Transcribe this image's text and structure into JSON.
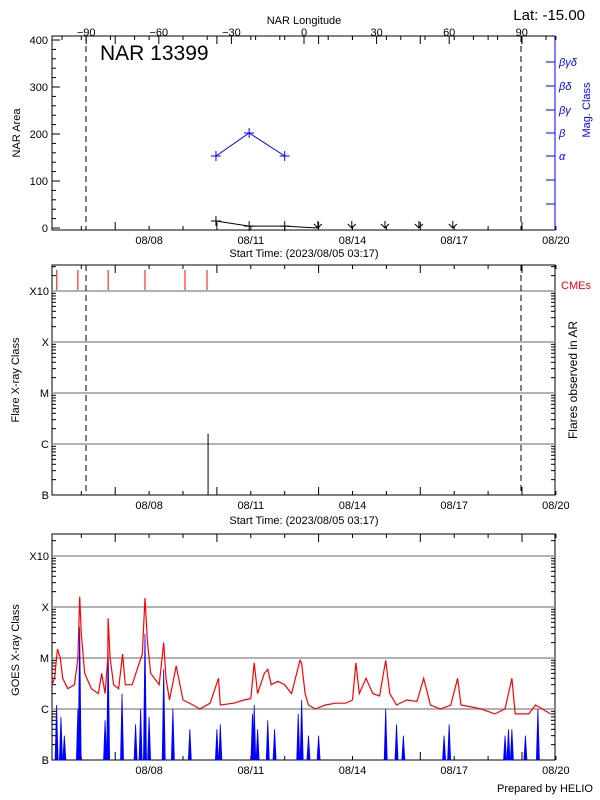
{
  "chart_data": [
    {
      "type": "line",
      "title": "NAR 13399",
      "lat_label": "Lat: -15.00",
      "top_axis_label": "NAR Longitude",
      "top_axis_ticks": [
        -90,
        -60,
        -30,
        0,
        30,
        60,
        90
      ],
      "xlabel": "Start Time: (2023/08/05 03:17)",
      "x_tick_labels": [
        "08/08",
        "08/11",
        "08/14",
        "08/17",
        "08/20"
      ],
      "x_tick_dates": [
        "2023-08-08 00:00",
        "2023-08-11 00:00",
        "2023-08-14 00:00",
        "2023-08-17 00:00",
        "2023-08-20 00:00"
      ],
      "xlim": [
        "2023-08-05 03:17",
        "2023-08-20 00:00"
      ],
      "ylabel": "NAR Area",
      "ylim": [
        0,
        400
      ],
      "y_ticks": [
        0,
        100,
        200,
        300,
        400
      ],
      "y2label": "Mag. Class",
      "y2_tick_labels": [
        "α",
        "β",
        "βγ",
        "βδ",
        "βγδ"
      ],
      "limb_longitudes": [
        -90,
        90
      ],
      "series": [
        {
          "name": "NAR Area",
          "color": "#000000",
          "points": [
            [
              "2023-08-09 23:20",
              15
            ],
            [
              "2023-08-10 22:50",
              4
            ],
            [
              "2023-08-12 00:00",
              4
            ]
          ],
          "limb_markers": [
            "2023-08-12 23:30",
            "2023-08-13 23:30",
            "2023-08-14 23:00",
            "2023-08-15 23:00",
            "2023-08-16 23:00"
          ]
        },
        {
          "name": "Mag. Class",
          "color": "#0000ff",
          "points": [
            [
              "2023-08-09 23:20",
              "α"
            ],
            [
              "2023-08-10 22:50",
              "β"
            ],
            [
              "2023-08-12 00:00",
              "α"
            ]
          ]
        }
      ]
    },
    {
      "type": "bar",
      "xlabel": "Start Time: (2023/08/05 03:17)",
      "x_tick_labels": [
        "08/08",
        "08/11",
        "08/14",
        "08/17",
        "08/20"
      ],
      "ylabel": "Flare X-ray Class",
      "y2label": "Flares observed in AR",
      "y_scale": "log",
      "y_tick_labels": [
        "B",
        "C",
        "M",
        "X",
        "X10"
      ],
      "grid": true,
      "cme_label": "CMEs",
      "cme_color": "#ff0000",
      "cmes": [
        "2023-08-05 06:40",
        "2023-08-05 21:35",
        "2023-08-06 19:00",
        "2023-08-07 21:05",
        "2023-08-09 01:25",
        "2023-08-09 17:00"
      ],
      "flares": [
        [
          "2023-08-09 17:45",
          "C1.6"
        ]
      ]
    },
    {
      "type": "line",
      "ylabel": "GOES X-ray Class",
      "y_scale": "log",
      "y_tick_labels": [
        "B",
        "C",
        "M",
        "X",
        "X10"
      ],
      "x_tick_labels": [
        "08/08",
        "08/11",
        "08/14",
        "08/17",
        "08/20"
      ],
      "grid": true,
      "series": [
        {
          "color": "#ff0000",
          "points": [
            [
              "2023-08-05 03:20",
              3e-06
            ],
            [
              "2023-08-05 05:00",
              4e-06
            ],
            [
              "2023-08-05 07:10",
              1.5e-05
            ],
            [
              "2023-08-05 09:10",
              1e-05
            ],
            [
              "2023-08-05 10:50",
              4e-06
            ],
            [
              "2023-08-05 14:25",
              2.5e-06
            ],
            [
              "2023-08-05 19:10",
              3e-06
            ],
            [
              "2023-08-05 21:35",
              1e-05
            ],
            [
              "2023-08-05 22:50",
              0.00016
            ],
            [
              "2023-08-06 00:00",
              3e-05
            ],
            [
              "2023-08-06 02:25",
              5e-06
            ],
            [
              "2023-08-06 07:10",
              2.5e-06
            ],
            [
              "2023-08-06 12:00",
              2e-06
            ],
            [
              "2023-08-06 14:25",
              5e-06
            ],
            [
              "2023-08-06 16:50",
              2e-06
            ],
            [
              "2023-08-06 18:45",
              1e-05
            ],
            [
              "2023-08-06 19:00",
              6e-05
            ],
            [
              "2023-08-06 20:25",
              1e-05
            ],
            [
              "2023-08-06 22:50",
              3e-06
            ],
            [
              "2023-08-07 02:25",
              2.5e-06
            ],
            [
              "2023-08-07 05:15",
              1.2e-05
            ],
            [
              "2023-08-07 07:10",
              3e-06
            ],
            [
              "2023-08-07 12:00",
              3e-06
            ],
            [
              "2023-08-07 15:35",
              6e-06
            ],
            [
              "2023-08-07 19:10",
              1.2e-05
            ],
            [
              "2023-08-07 21:05",
              0.00015
            ],
            [
              "2023-08-07 22:50",
              2e-05
            ],
            [
              "2023-08-08 01:10",
              5e-06
            ],
            [
              "2023-08-08 07:10",
              3e-06
            ],
            [
              "2023-08-08 10:20",
              2e-05
            ],
            [
              "2023-08-08 12:00",
              4e-06
            ],
            [
              "2023-08-08 14:25",
              1.5e-06
            ],
            [
              "2023-08-08 19:10",
              7e-06
            ],
            [
              "2023-08-09 00:00",
              1.5e-06
            ],
            [
              "2023-08-09 07:10",
              1.2e-06
            ],
            [
              "2023-08-09 12:00",
              1e-06
            ],
            [
              "2023-08-09 19:10",
              1.3e-06
            ],
            [
              "2023-08-10 01:10",
              4e-06
            ],
            [
              "2023-08-10 02:25",
              1.2e-06
            ],
            [
              "2023-08-10 12:00",
              1.3e-06
            ],
            [
              "2023-08-10 19:10",
              1.5e-06
            ],
            [
              "2023-08-11 00:00",
              1.6e-06
            ],
            [
              "2023-08-11 02:25",
              8e-06
            ],
            [
              "2023-08-11 04:50",
              2e-06
            ],
            [
              "2023-08-11 09:35",
              5e-06
            ],
            [
              "2023-08-11 12:00",
              6e-06
            ],
            [
              "2023-08-11 14:25",
              3e-06
            ],
            [
              "2023-08-11 19:10",
              3.5e-06
            ],
            [
              "2023-08-12 00:00",
              3e-06
            ],
            [
              "2023-08-12 04:50",
              2e-06
            ],
            [
              "2023-08-12 10:50",
              9e-06
            ],
            [
              "2023-08-12 12:00",
              8e-06
            ],
            [
              "2023-08-12 14:25",
              2e-06
            ],
            [
              "2023-08-12 16:50",
              1.2e-06
            ],
            [
              "2023-08-12 21:35",
              1e-06
            ],
            [
              "2023-08-13 04:50",
              1.2e-06
            ],
            [
              "2023-08-13 12:00",
              1.3e-06
            ],
            [
              "2023-08-13 19:10",
              1.3e-06
            ],
            [
              "2023-08-14 00:00",
              1.5e-06
            ],
            [
              "2023-08-14 02:25",
              8e-06
            ],
            [
              "2023-08-14 04:50",
              2e-06
            ],
            [
              "2023-08-14 09:35",
              4e-06
            ],
            [
              "2023-08-14 14:25",
              2e-06
            ],
            [
              "2023-08-14 19:10",
              1.8e-06
            ],
            [
              "2023-08-14 23:30",
              9e-06
            ],
            [
              "2023-08-15 02:25",
              2e-06
            ],
            [
              "2023-08-15 07:10",
              1.2e-06
            ],
            [
              "2023-08-15 14:25",
              1.5e-06
            ],
            [
              "2023-08-15 21:35",
              1.4e-06
            ],
            [
              "2023-08-16 02:25",
              4e-06
            ],
            [
              "2023-08-16 07:10",
              1.2e-06
            ],
            [
              "2023-08-16 14:25",
              1e-06
            ],
            [
              "2023-08-16 21:35",
              1.2e-06
            ],
            [
              "2023-08-17 02:25",
              4e-06
            ],
            [
              "2023-08-17 04:50",
              1.2e-06
            ],
            [
              "2023-08-17 12:00",
              1.1e-06
            ],
            [
              "2023-08-17 19:10",
              1e-06
            ],
            [
              "2023-08-18 04:50",
              8e-07
            ],
            [
              "2023-08-18 12:00",
              1e-06
            ],
            [
              "2023-08-18 16:50",
              4e-06
            ],
            [
              "2023-08-18 19:10",
              8e-07
            ],
            [
              "2023-08-19 04:50",
              8e-07
            ],
            [
              "2023-08-19 09:35",
              1.2e-06
            ],
            [
              "2023-08-19 14:25",
              1e-06
            ],
            [
              "2023-08-19 20:10",
              8e-07
            ]
          ]
        },
        {
          "color": "#0000ff",
          "points": [
            [
              "2023-08-05 06:30",
              1.2e-06
            ],
            [
              "2023-08-05 09:35",
              7e-07
            ],
            [
              "2023-08-05 12:00",
              3e-07
            ],
            [
              "2023-08-05 21:35",
              1e-06
            ],
            [
              "2023-08-05 22:50",
              4e-05
            ],
            [
              "2023-08-06 16:50",
              6e-07
            ],
            [
              "2023-08-06 19:00",
              1.5e-05
            ],
            [
              "2023-08-07 04:50",
              2e-06
            ],
            [
              "2023-08-07 14:25",
              5e-07
            ],
            [
              "2023-08-07 18:00",
              1e-06
            ],
            [
              "2023-08-07 21:05",
              3e-05
            ],
            [
              "2023-08-08 00:00",
              7e-07
            ],
            [
              "2023-08-08 10:20",
              6e-06
            ],
            [
              "2023-08-08 16:50",
              1e-06
            ],
            [
              "2023-08-09 04:50",
              4e-07
            ],
            [
              "2023-08-10 00:00",
              4e-07
            ],
            [
              "2023-08-10 02:25",
              5e-07
            ],
            [
              "2023-08-11 01:10",
              8e-07
            ],
            [
              "2023-08-11 02:25",
              1.2e-06
            ],
            [
              "2023-08-11 04:50",
              4e-07
            ],
            [
              "2023-08-11 12:00",
              6e-07
            ],
            [
              "2023-08-11 16:50",
              4e-07
            ],
            [
              "2023-08-12 09:35",
              8e-07
            ],
            [
              "2023-08-12 12:00",
              1.5e-06
            ],
            [
              "2023-08-12 16:50",
              3e-07
            ],
            [
              "2023-08-13 00:00",
              3e-07
            ],
            [
              "2023-08-14 23:30",
              1e-06
            ],
            [
              "2023-08-15 07:10",
              5e-07
            ],
            [
              "2023-08-15 12:00",
              3e-07
            ],
            [
              "2023-08-16 16:50",
              3e-07
            ],
            [
              "2023-08-16 20:25",
              5e-07
            ],
            [
              "2023-08-18 12:00",
              3e-07
            ],
            [
              "2023-08-18 14:25",
              4e-07
            ],
            [
              "2023-08-18 16:50",
              4e-07
            ],
            [
              "2023-08-19 02:25",
              3e-07
            ],
            [
              "2023-08-19 11:15",
              1e-06
            ]
          ]
        }
      ]
    }
  ],
  "footer": {
    "credit": "Prepared by HELIO"
  }
}
